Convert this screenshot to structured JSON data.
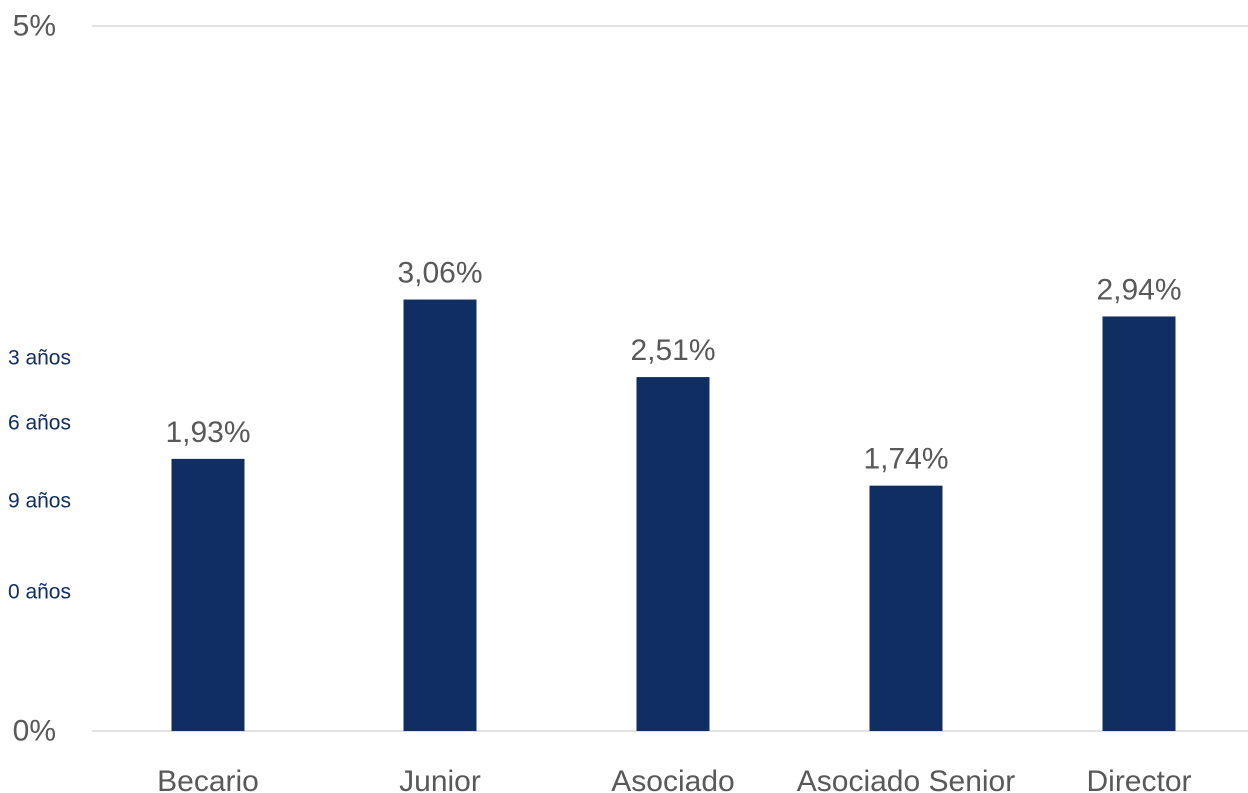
{
  "chart_data": {
    "type": "bar",
    "categories": [
      "Becario",
      "Junior",
      "Asociado",
      "Asociado Senior",
      "Director"
    ],
    "values": [
      1.93,
      3.06,
      2.51,
      1.74,
      2.94
    ],
    "data_labels": [
      "1,93%",
      "3,06%",
      "2,51%",
      "1,74%",
      "2,94%"
    ],
    "ylim": [
      0,
      5
    ],
    "y_ticks": [
      {
        "value": 5,
        "label": "5%"
      },
      {
        "value": 0,
        "label": "0%"
      }
    ],
    "grid": true,
    "bar_color": "#102E62",
    "side_labels": [
      {
        "text": "3 años"
      },
      {
        "text": "6 años"
      },
      {
        "text": "9 años"
      },
      {
        "text": "0 años"
      }
    ],
    "side_label_color": "#102E62"
  }
}
